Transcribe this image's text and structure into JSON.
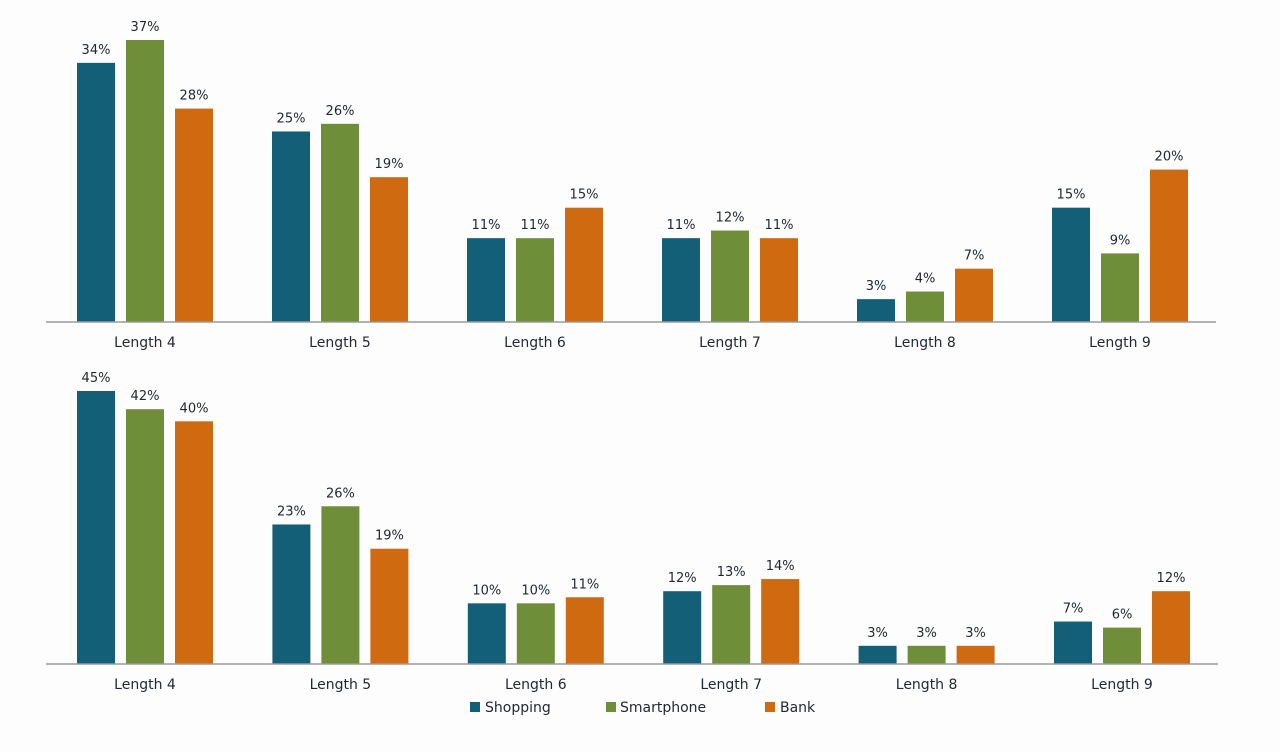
{
  "chart_data": [
    {
      "type": "bar",
      "categories": [
        "Length 4",
        "Length 5",
        "Length 6",
        "Length 7",
        "Length 8",
        "Length 9"
      ],
      "series": [
        {
          "name": "Shopping",
          "values": [
            34,
            25,
            11,
            11,
            3,
            15
          ]
        },
        {
          "name": "Smartphone",
          "values": [
            37,
            26,
            11,
            12,
            4,
            9
          ]
        },
        {
          "name": "Bank",
          "values": [
            28,
            19,
            15,
            11,
            7,
            20
          ]
        }
      ],
      "value_suffix": "%",
      "ylim": [
        0,
        37
      ],
      "grid": false
    },
    {
      "type": "bar",
      "categories": [
        "Length 4",
        "Length 5",
        "Length 6",
        "Length 7",
        "Length 8",
        "Length 9"
      ],
      "series": [
        {
          "name": "Shopping",
          "values": [
            45,
            23,
            10,
            12,
            3,
            7
          ]
        },
        {
          "name": "Smartphone",
          "values": [
            42,
            26,
            10,
            13,
            3,
            6
          ]
        },
        {
          "name": "Bank",
          "values": [
            40,
            19,
            11,
            14,
            3,
            12
          ]
        }
      ],
      "value_suffix": "%",
      "ylim": [
        0,
        45
      ],
      "grid": false
    }
  ],
  "legend": {
    "placement": "bottom",
    "items": [
      "Shopping",
      "Smartphone",
      "Bank"
    ]
  },
  "colors": {
    "Shopping": "#135f78",
    "Smartphone": "#6e8e3a",
    "Bank": "#d06a10",
    "axis": "#9a9a9a"
  }
}
